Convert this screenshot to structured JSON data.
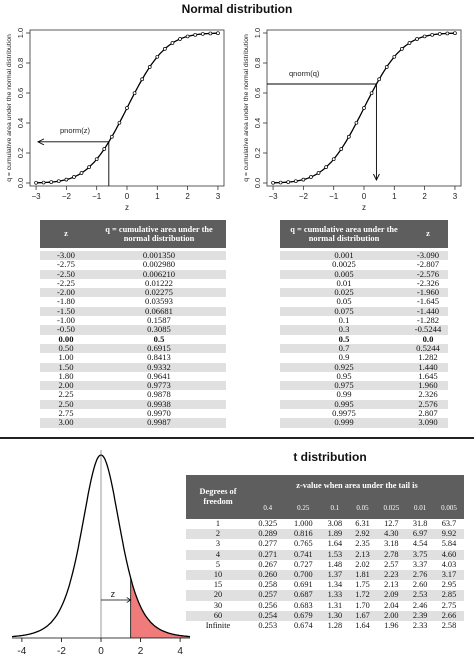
{
  "normal": {
    "title": "Normal distribution",
    "ylabel": "q = cumulative area under the normal distribution",
    "xlabel": "z",
    "yticks": [
      "0.0",
      "0.2",
      "0.4",
      "0.6",
      "0.8",
      "1.0"
    ],
    "xticks": [
      "−3",
      "−2",
      "−1",
      "0",
      "1",
      "2",
      "3"
    ],
    "left_annotation": "pnorm(z)",
    "right_annotation": "qnorm(q)",
    "left_table": {
      "headers": [
        "z",
        "q = cumulative area under the normal distribution"
      ],
      "rows": [
        [
          "-3.00",
          "0.001350"
        ],
        [
          "-2.75",
          "0.002980"
        ],
        [
          "-2.50",
          "0.006210"
        ],
        [
          "-2.25",
          "0.01222"
        ],
        [
          "-2.00",
          "0.02275"
        ],
        [
          "-1.80",
          "0.03593"
        ],
        [
          "-1.50",
          "0.06681"
        ],
        [
          "-1.00",
          "0.1587"
        ],
        [
          "-0.50",
          "0.3085"
        ],
        [
          "0.00",
          "0.5"
        ],
        [
          "0.50",
          "0.6915"
        ],
        [
          "1.00",
          "0.8413"
        ],
        [
          "1.50",
          "0.9332"
        ],
        [
          "1.80",
          "0.9641"
        ],
        [
          "2.00",
          "0.9773"
        ],
        [
          "2.25",
          "0.9878"
        ],
        [
          "2.50",
          "0.9938"
        ],
        [
          "2.75",
          "0.9970"
        ],
        [
          "3.00",
          "0.9987"
        ]
      ]
    },
    "right_table": {
      "headers": [
        "q = cumulative area under the normal distribution",
        "z"
      ],
      "rows": [
        [
          "0.001",
          "-3.090"
        ],
        [
          "0.0025",
          "-2.807"
        ],
        [
          "0.005",
          "-2.576"
        ],
        [
          "0.01",
          "-2.326"
        ],
        [
          "0.025",
          "-1.960"
        ],
        [
          "0.05",
          "-1.645"
        ],
        [
          "0.075",
          "-1.440"
        ],
        [
          "0.1",
          "-1.282"
        ],
        [
          "0.3",
          "-0.5244"
        ],
        [
          "0.5",
          "0.0"
        ],
        [
          "0.7",
          "0.5244"
        ],
        [
          "0.9",
          "1.282"
        ],
        [
          "0.925",
          "1.440"
        ],
        [
          "0.95",
          "1.645"
        ],
        [
          "0.975",
          "1.960"
        ],
        [
          "0.99",
          "2.326"
        ],
        [
          "0.995",
          "2.576"
        ],
        [
          "0.9975",
          "2.807"
        ],
        [
          "0.999",
          "3.090"
        ]
      ]
    }
  },
  "t": {
    "title": "t distribution",
    "xticks": [
      "-4",
      "-2",
      "0",
      "2",
      "4"
    ],
    "z_label": "z",
    "header_df": "Degrees of freedom",
    "header_span": "z-value when area under the tail is",
    "tails": [
      "0.4",
      "0.25",
      "0.1",
      "0.05",
      "0.025",
      "0.01",
      "0.005"
    ],
    "rows": [
      [
        "1",
        "0.325",
        "1.000",
        "3.08",
        "6.31",
        "12.7",
        "31.8",
        "63.7"
      ],
      [
        "2",
        "0.289",
        "0.816",
        "1.89",
        "2.92",
        "4.30",
        "6.97",
        "9.92"
      ],
      [
        "3",
        "0.277",
        "0.765",
        "1.64",
        "2.35",
        "3.18",
        "4.54",
        "5.84"
      ],
      [
        "4",
        "0.271",
        "0.741",
        "1.53",
        "2.13",
        "2.78",
        "3.75",
        "4.60"
      ],
      [
        "5",
        "0.267",
        "0.727",
        "1.48",
        "2.02",
        "2.57",
        "3.37",
        "4.03"
      ],
      [
        "10",
        "0.260",
        "0.700",
        "1.37",
        "1.81",
        "2.23",
        "2.76",
        "3.17"
      ],
      [
        "15",
        "0.258",
        "0.691",
        "1.34",
        "1.75",
        "2.13",
        "2.60",
        "2.95"
      ],
      [
        "20",
        "0.257",
        "0.687",
        "1.33",
        "1.72",
        "2.09",
        "2.53",
        "2.85"
      ],
      [
        "30",
        "0.256",
        "0.683",
        "1.31",
        "1.70",
        "2.04",
        "2.46",
        "2.75"
      ],
      [
        "60",
        "0.254",
        "0.679",
        "1.30",
        "1.67",
        "2.00",
        "2.39",
        "2.66"
      ],
      [
        "Infinite",
        "0.253",
        "0.674",
        "1.28",
        "1.64",
        "1.96",
        "2.33",
        "2.58"
      ]
    ]
  },
  "colors": {
    "header_bg": "#5e5e5e",
    "row_alt": "#e0e0e0",
    "tail_fill": "#f07b7b"
  }
}
